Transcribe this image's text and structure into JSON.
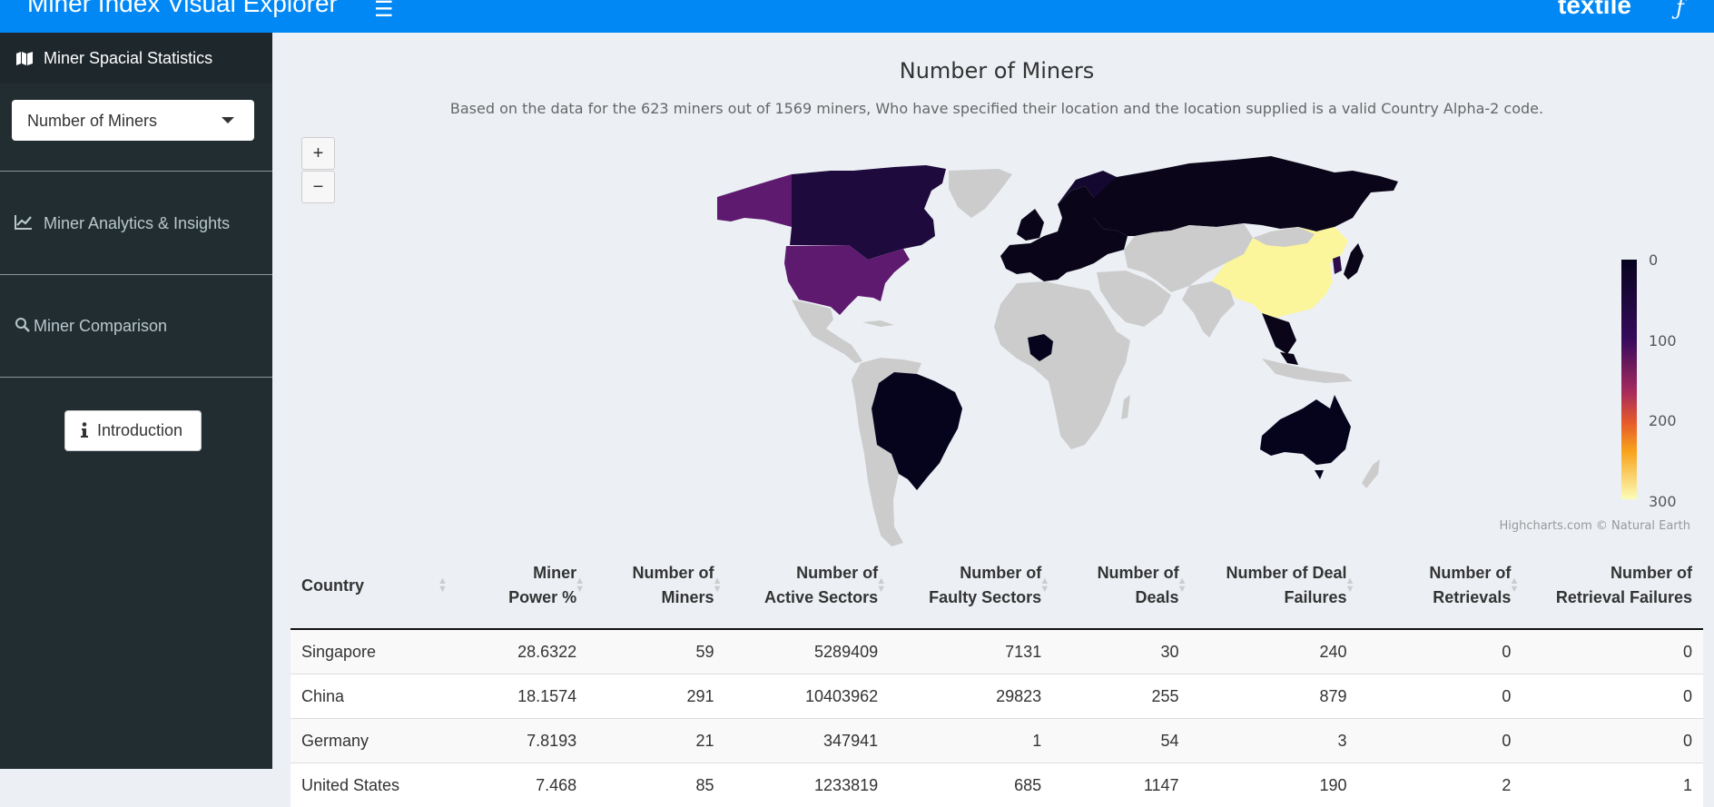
{
  "header": {
    "title": "Miner Index Visual Explorer",
    "hamburger_icon": "hamburger-icon",
    "brand": "textile",
    "brand_icon": "filecoin-icon",
    "color": "#0288f5"
  },
  "sidebar": {
    "section_title": "Miner Spacial Statistics",
    "section_icon": "map-icon",
    "select_value": "Number of Miners",
    "items": [
      {
        "label": "Miner Analytics & Insights",
        "icon": "line-chart-icon"
      },
      {
        "label": "Miner Comparison",
        "icon": "search-icon"
      }
    ],
    "intro_button": "Introduction",
    "intro_icon": "info-icon"
  },
  "chart_data": {
    "type": "choropleth",
    "title": "Number of Miners",
    "subtitle": "Based on the data for the 623 miners out of 1569 miners, Who have specified their location and the location supplied is a valid Country Alpha-2 code.",
    "color_axis": {
      "min": 0,
      "max": 300,
      "ticks": [
        "0",
        "100",
        "200",
        "300"
      ],
      "colors": [
        "#06041d",
        "#350a5c",
        "#a52a5d",
        "#f8a31c",
        "#fcfdb8"
      ]
    },
    "zoom_in": "+",
    "zoom_out": "−",
    "credits": "Highcharts.com © Natural Earth",
    "highlighted": [
      {
        "country": "China",
        "value": 291,
        "color": "#fbf59b"
      },
      {
        "country": "United States",
        "value": 85,
        "color": "#5e1a6e"
      },
      {
        "country": "Canada",
        "value": 40,
        "color": "#1e0a3c"
      },
      {
        "country": "Alaska (US)",
        "value": 85,
        "color": "#5e1a6e"
      },
      {
        "country": "Russia",
        "value": 5,
        "color": "#0a0518"
      },
      {
        "country": "Brazil",
        "value": 2,
        "color": "#06041d"
      },
      {
        "country": "Australia",
        "value": 3,
        "color": "#06041d"
      },
      {
        "country": "Nigeria",
        "value": 1,
        "color": "#06041d"
      }
    ]
  },
  "table": {
    "headers": [
      [
        "Country"
      ],
      [
        "Miner",
        "Power %"
      ],
      [
        "Number of",
        "Miners"
      ],
      [
        "Number of",
        "Active Sectors"
      ],
      [
        "Number of",
        "Faulty Sectors"
      ],
      [
        "Number of",
        "Deals"
      ],
      [
        "Number of Deal",
        "Failures"
      ],
      [
        "Number of",
        "Retrievals"
      ],
      [
        "Number of",
        "Retrieval Failures"
      ]
    ],
    "rows": [
      [
        "Singapore",
        "28.6322",
        "59",
        "5289409",
        "7131",
        "30",
        "240",
        "0",
        "0"
      ],
      [
        "China",
        "18.1574",
        "291",
        "10403962",
        "29823",
        "255",
        "879",
        "0",
        "0"
      ],
      [
        "Germany",
        "7.8193",
        "21",
        "347941",
        "1",
        "54",
        "3",
        "0",
        "0"
      ],
      [
        "United States",
        "7.468",
        "85",
        "1233819",
        "685",
        "1147",
        "190",
        "2",
        "1"
      ]
    ]
  }
}
